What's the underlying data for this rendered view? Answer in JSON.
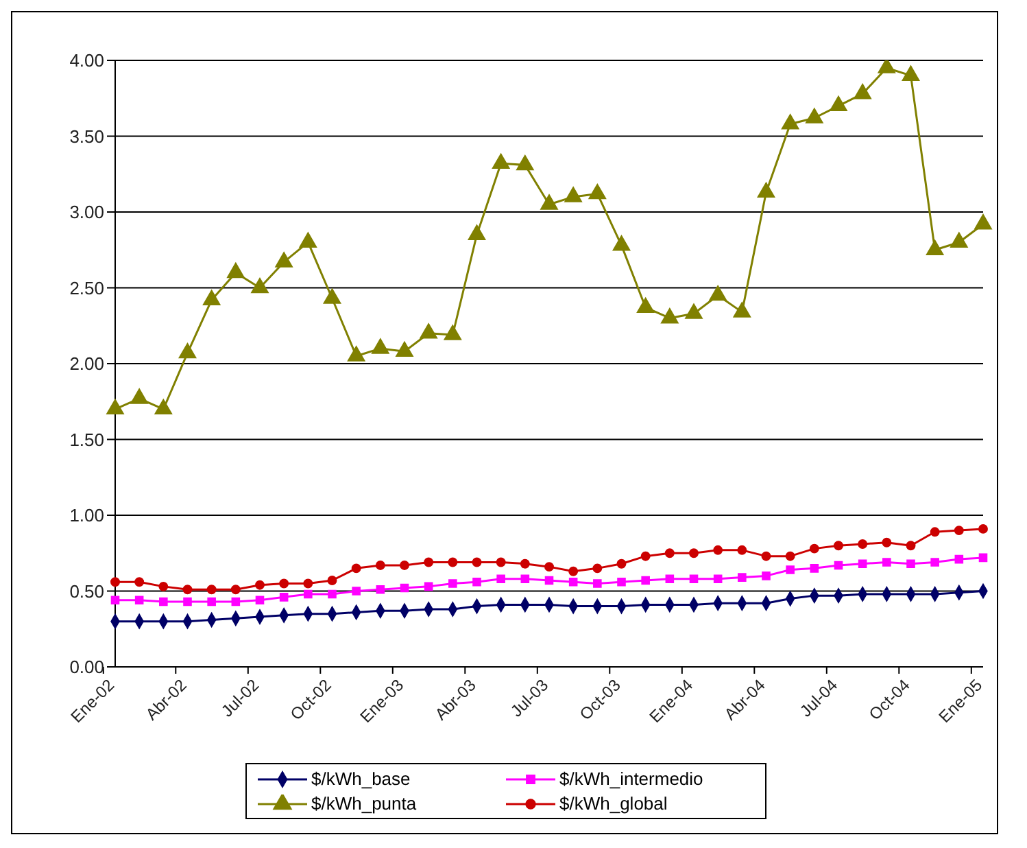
{
  "chart_data": {
    "type": "line",
    "categories": [
      "Ene-02",
      null,
      null,
      "Abr-02",
      null,
      null,
      "Jul-02",
      null,
      null,
      "Oct-02",
      null,
      null,
      "Ene-03",
      null,
      null,
      "Abr-03",
      null,
      null,
      "Jul-03",
      null,
      null,
      "Oct-03",
      null,
      null,
      "Ene-04",
      null,
      null,
      "Abr-04",
      null,
      null,
      "Jul-04",
      null,
      null,
      "Oct-04",
      null,
      null,
      "Ene-05"
    ],
    "series": [
      {
        "name": "$/kWh_base",
        "color": "#000066",
        "marker": "diamond",
        "values": [
          0.3,
          0.3,
          0.3,
          0.3,
          0.31,
          0.32,
          0.33,
          0.34,
          0.35,
          0.35,
          0.36,
          0.37,
          0.37,
          0.38,
          0.38,
          0.4,
          0.41,
          0.41,
          0.41,
          0.4,
          0.4,
          0.4,
          0.41,
          0.41,
          0.41,
          0.42,
          0.42,
          0.42,
          0.45,
          0.47,
          0.47,
          0.48,
          0.48,
          0.48,
          0.48,
          0.49,
          0.5
        ]
      },
      {
        "name": "$/kWh_intermedio",
        "color": "#ff00ff",
        "marker": "square",
        "values": [
          0.44,
          0.44,
          0.43,
          0.43,
          0.43,
          0.43,
          0.44,
          0.46,
          0.48,
          0.48,
          0.5,
          0.51,
          0.52,
          0.53,
          0.55,
          0.56,
          0.58,
          0.58,
          0.57,
          0.56,
          0.55,
          0.56,
          0.57,
          0.58,
          0.58,
          0.58,
          0.59,
          0.6,
          0.64,
          0.65,
          0.67,
          0.68,
          0.69,
          0.68,
          0.69,
          0.71,
          0.72
        ]
      },
      {
        "name": "$/kWh_punta",
        "color": "#808000",
        "marker": "triangle",
        "values": [
          1.7,
          1.77,
          1.7,
          2.07,
          2.42,
          2.6,
          2.5,
          2.67,
          2.8,
          2.43,
          2.05,
          2.1,
          2.08,
          2.2,
          2.19,
          2.85,
          3.32,
          3.31,
          3.05,
          3.1,
          3.12,
          2.78,
          2.37,
          2.3,
          2.33,
          2.45,
          2.34,
          3.13,
          3.58,
          3.62,
          3.7,
          3.78,
          3.95,
          3.9,
          2.75,
          2.8,
          2.92
        ]
      },
      {
        "name": "$/kWh_global",
        "color": "#cc0000",
        "marker": "circle",
        "values": [
          0.56,
          0.56,
          0.53,
          0.51,
          0.51,
          0.51,
          0.54,
          0.55,
          0.55,
          0.57,
          0.65,
          0.67,
          0.67,
          0.69,
          0.69,
          0.69,
          0.69,
          0.68,
          0.66,
          0.63,
          0.65,
          0.68,
          0.73,
          0.75,
          0.75,
          0.77,
          0.77,
          0.73,
          0.73,
          0.78,
          0.8,
          0.81,
          0.82,
          0.8,
          0.89,
          0.9,
          0.91
        ]
      }
    ],
    "ylim": [
      0,
      4
    ],
    "yticks": [
      {
        "value": 0,
        "label": "0.00"
      },
      {
        "value": 0.5,
        "label": "0.50"
      },
      {
        "value": 1,
        "label": "1.00"
      },
      {
        "value": 1.5,
        "label": "1.50"
      },
      {
        "value": 2,
        "label": "2.00"
      },
      {
        "value": 2.5,
        "label": "2.50"
      },
      {
        "value": 3,
        "label": "3.00"
      },
      {
        "value": 3.5,
        "label": "3.50"
      },
      {
        "value": 4,
        "label": "4.00"
      }
    ],
    "grid": "y",
    "legend": "bottom"
  }
}
